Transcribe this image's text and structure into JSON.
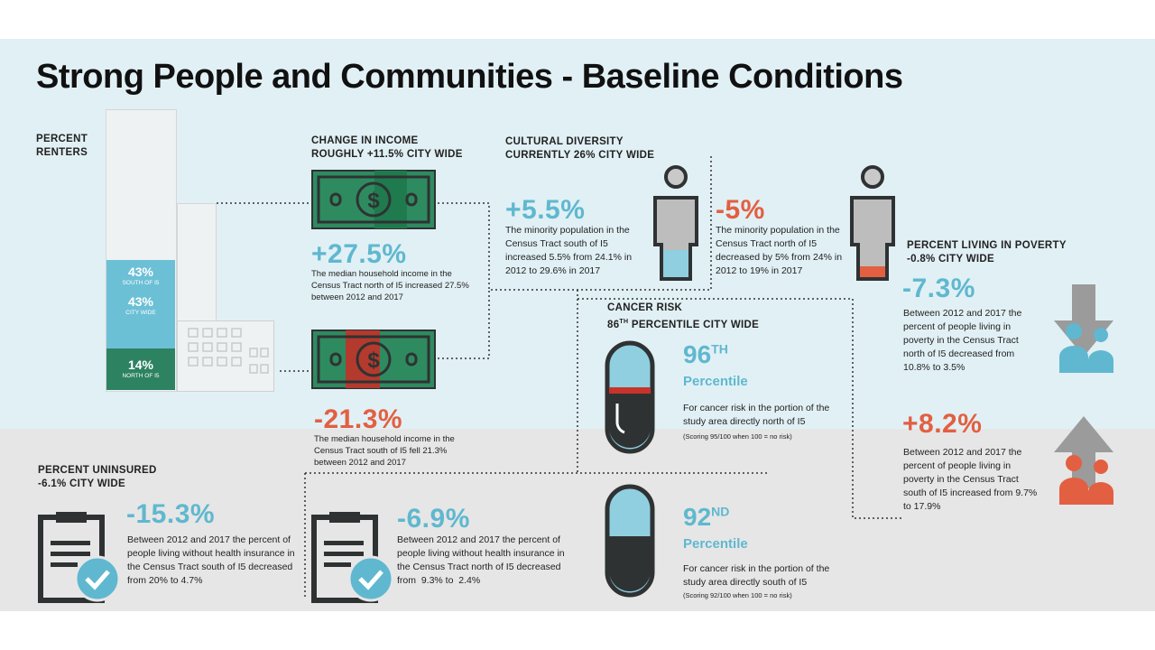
{
  "title": "Strong People and Communities - Baseline Conditions",
  "renters": {
    "heading_line1": "PERCENT",
    "heading_line2": "RENTERS",
    "south_value": "43%",
    "south_label": "SOUTH OF I5",
    "city_value": "43%",
    "city_label": "CITY WIDE",
    "north_value": "14%",
    "north_label": "NORTH OF I5"
  },
  "income": {
    "heading_line1": "CHANGE IN INCOME",
    "heading_line2": "ROUGHLY +11.5% CITY WIDE",
    "north_change": "+27.5%",
    "north_text": "The median household income in the Census Tract north of I5 increased 27.5% between 2012 and 2017",
    "south_change": "-21.3%",
    "south_text": "The median household income in the Census Tract south of I5 fell 21.3% between 2012 and 2017"
  },
  "diversity": {
    "heading_line1": "CULTURAL DIVERSITY",
    "heading_line2": "CURRENTLY 26% CITY WIDE",
    "south_change": "+5.5%",
    "south_text": "The minority population in the Census Tract south of I5 increased 5.5% from 24.1% in 2012 to 29.6% in 2017",
    "north_change": "-5%",
    "north_text": "The minority population in the Census Tract north of I5 decreased by 5% from 24% in 2012 to 19% in 2017"
  },
  "poverty": {
    "heading_line1": "PERCENT LIVING IN POVERTY",
    "heading_line2": "-0.8% CITY WIDE",
    "north_change": "-7.3%",
    "north_text": "Between 2012 and 2017 the percent of people living in poverty in the Census Tract north of I5 decreased from 10.8% to 3.5%",
    "south_change": "+8.2%",
    "south_text": "Between 2012 and 2017 the percent of people living in poverty in the Census Tract south of I5 increased from 9.7% to 17.9%"
  },
  "cancer": {
    "heading_line1": "CANCER RISK",
    "heading_line2_num": "86",
    "heading_line2_sup": "TH",
    "heading_line2_rest": "PERCENTILE CITY WIDE",
    "north_value": "96",
    "north_sup": "TH",
    "north_unit": "Percentile",
    "north_text": "For cancer risk in the portion of the study area directly north of I5",
    "north_note": "(Scoring 95/100 when 100 = no risk)",
    "south_value": "92",
    "south_sup": "ND",
    "south_unit": "Percentile",
    "south_text": "For cancer risk in the portion of the study area directly south of I5",
    "south_note": "(Scoring 92/100 when 100 = no risk)"
  },
  "uninsured": {
    "heading_line1": "PERCENT UNINSURED",
    "heading_line2": "-6.1% CITY WIDE",
    "south_change": "-15.3%",
    "south_text": "Between 2012 and 2017 the percent of people living without health insurance in the Census Tract south of I5 decreased from 20% to 4.7%",
    "north_change": "-6.9%",
    "north_text": "Between 2012 and 2017 the percent of people living without health insurance in the Census Tract north of I5 decreased from  9.3% to  2.4%"
  },
  "colors": {
    "accent_blue": "#5fb8cf",
    "accent_red": "#e35f41",
    "money_green": "#2e8b60",
    "dark": "#2f3233"
  }
}
